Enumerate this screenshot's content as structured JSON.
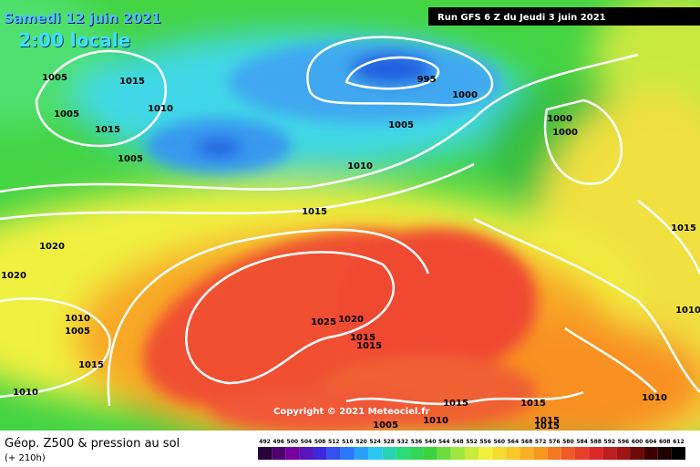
{
  "header": {
    "date": "Samedi 12 juin 2021",
    "time": "2:00 locale",
    "run": "Run GFS 6 Z du Jeudi 3 juin 2021"
  },
  "copyright": "Copyright © 2021 Meteociel.fr",
  "legend": {
    "title": "Géop. Z500 & pression au sol",
    "subtitle": "(+ 210h)",
    "scale": [
      492,
      496,
      500,
      504,
      508,
      512,
      516,
      520,
      524,
      528,
      532,
      536,
      540,
      544,
      548,
      552,
      556,
      560,
      564,
      568,
      572,
      576,
      580,
      584,
      588,
      592,
      596,
      600,
      604,
      608,
      612
    ]
  },
  "isobar_labels": [
    "1005",
    "1015",
    "1005",
    "1010",
    "1015",
    "1005",
    "995",
    "1000",
    "1005",
    "1010",
    "1000",
    "1000",
    "1015",
    "1015",
    "1020",
    "1020",
    "1010",
    "1005",
    "1025",
    "1020",
    "1015",
    "1015",
    "1015",
    "1010",
    "1010",
    "1010",
    "1015",
    "1015",
    "1015",
    "1015",
    "1010",
    "1005"
  ]
}
